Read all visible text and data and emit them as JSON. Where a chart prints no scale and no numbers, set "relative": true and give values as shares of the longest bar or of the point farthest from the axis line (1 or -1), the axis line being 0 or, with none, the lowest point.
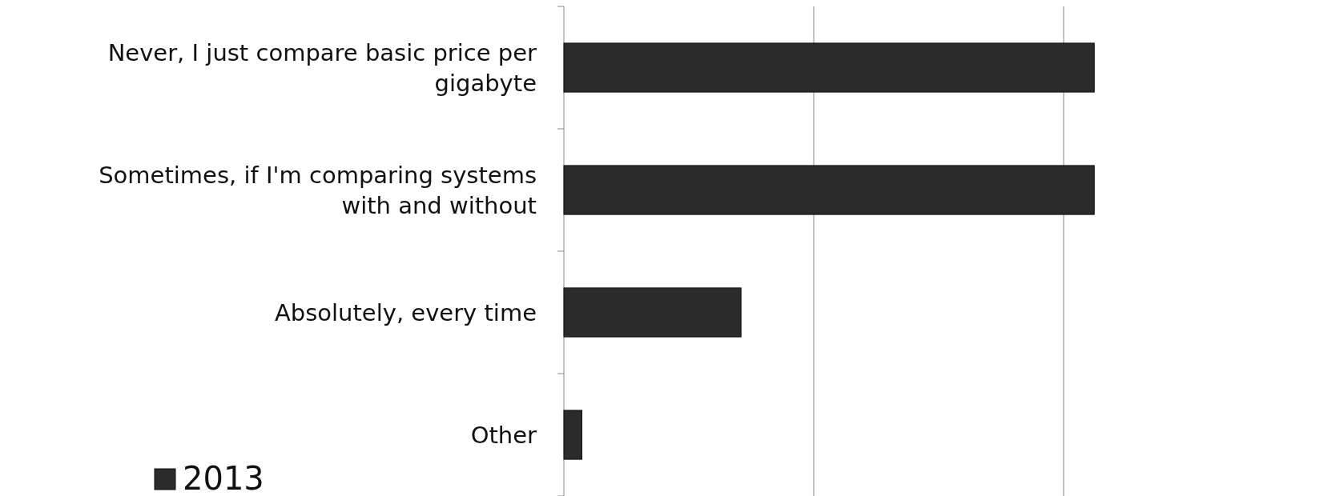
{
  "chart_data": {
    "type": "bar",
    "orientation": "horizontal",
    "relative": true,
    "ref_lines": [
      {
        "axis": "x",
        "value": 0.4711,
        "color": "#888888"
      },
      {
        "axis": "x",
        "value": 0.9422,
        "color": "#888888"
      }
    ],
    "legend": "bottom left",
    "categories": [
      "Never, I just compare basic price per gigabyte",
      "Sometimes, if I'm comparing systems with and without",
      "Absolutely, every time",
      "Other"
    ],
    "series": [
      {
        "name": "2013",
        "color": "#2b2b2b",
        "values": [
          1,
          1,
          0.334,
          0.034
        ]
      }
    ]
  }
}
